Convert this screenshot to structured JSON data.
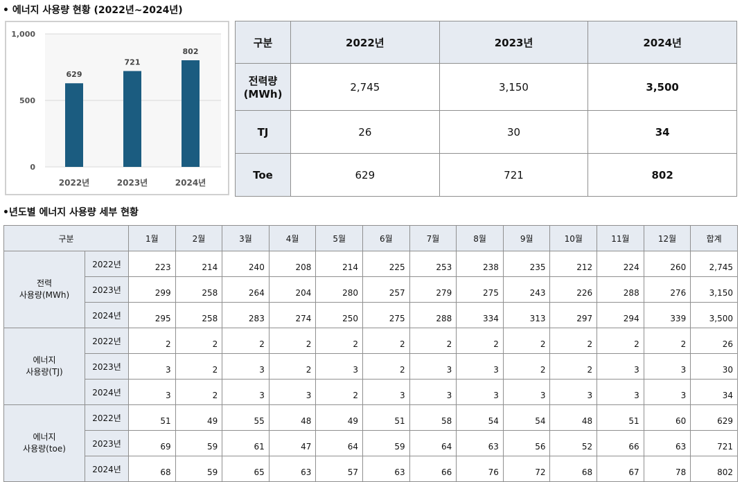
{
  "section1_title": "• 에너지 사용량 현황 (2022년~2024년)",
  "section2_title": "•년도별 에너지 사용량 세부 현황",
  "chart_data": {
    "type": "bar",
    "categories": [
      "2022년",
      "2023년",
      "2024년"
    ],
    "values": [
      629,
      721,
      802
    ],
    "ylim": [
      0,
      1000
    ],
    "yticks": [
      0,
      500,
      1000
    ],
    "ytick_labels": [
      "0",
      "500",
      "1,000"
    ],
    "grid": true,
    "bar_color": "#1b5c80"
  },
  "summary": {
    "header": [
      "구분",
      "2022년",
      "2023년",
      "2024년"
    ],
    "rows": [
      {
        "label_line1": "전력량",
        "label_line2": "(MWh)",
        "values": [
          "2,745",
          "3,150",
          "3,500"
        ]
      },
      {
        "label_line1": "TJ",
        "label_line2": "",
        "values": [
          "26",
          "30",
          "34"
        ]
      },
      {
        "label_line1": "Toe",
        "label_line2": "",
        "values": [
          "629",
          "721",
          "802"
        ]
      }
    ]
  },
  "detail": {
    "header": [
      "구분",
      "1월",
      "2월",
      "3월",
      "4월",
      "5월",
      "6월",
      "7월",
      "8월",
      "9월",
      "10월",
      "11월",
      "12월",
      "합계"
    ],
    "groups": [
      {
        "label_line1": "전력",
        "label_line2": "사용량(MWh)",
        "rows": [
          {
            "year": "2022년",
            "values": [
              "223",
              "214",
              "240",
              "208",
              "214",
              "225",
              "253",
              "238",
              "235",
              "212",
              "224",
              "260",
              "2,745"
            ]
          },
          {
            "year": "2023년",
            "values": [
              "299",
              "258",
              "264",
              "204",
              "280",
              "257",
              "279",
              "275",
              "243",
              "226",
              "288",
              "276",
              "3,150"
            ]
          },
          {
            "year": "2024년",
            "values": [
              "295",
              "258",
              "283",
              "274",
              "250",
              "275",
              "288",
              "334",
              "313",
              "297",
              "294",
              "339",
              "3,500"
            ]
          }
        ]
      },
      {
        "label_line1": "에너지",
        "label_line2": "사용량(TJ)",
        "rows": [
          {
            "year": "2022년",
            "values": [
              "2",
              "2",
              "2",
              "2",
              "2",
              "2",
              "2",
              "2",
              "2",
              "2",
              "2",
              "2",
              "26"
            ]
          },
          {
            "year": "2023년",
            "values": [
              "3",
              "2",
              "3",
              "2",
              "3",
              "2",
              "3",
              "3",
              "2",
              "2",
              "3",
              "3",
              "30"
            ]
          },
          {
            "year": "2024년",
            "values": [
              "3",
              "2",
              "3",
              "3",
              "2",
              "3",
              "3",
              "3",
              "3",
              "3",
              "3",
              "3",
              "34"
            ]
          }
        ]
      },
      {
        "label_line1": "에너지",
        "label_line2": "사용량(toe)",
        "rows": [
          {
            "year": "2022년",
            "values": [
              "51",
              "49",
              "55",
              "48",
              "49",
              "51",
              "58",
              "54",
              "54",
              "48",
              "51",
              "60",
              "629"
            ]
          },
          {
            "year": "2023년",
            "values": [
              "69",
              "59",
              "61",
              "47",
              "64",
              "59",
              "64",
              "63",
              "56",
              "52",
              "66",
              "63",
              "721"
            ]
          },
          {
            "year": "2024년",
            "values": [
              "68",
              "59",
              "65",
              "63",
              "57",
              "63",
              "66",
              "76",
              "72",
              "68",
              "67",
              "78",
              "802"
            ]
          }
        ]
      }
    ]
  }
}
